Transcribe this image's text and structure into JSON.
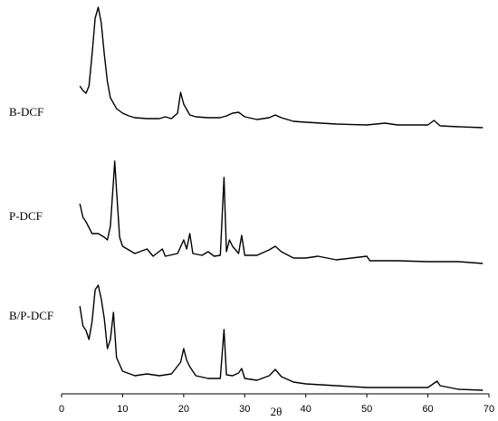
{
  "chart_data": {
    "type": "line",
    "x_label": "2θ",
    "xlim": [
      0,
      70
    ],
    "xticks": [
      0,
      10,
      20,
      30,
      40,
      50,
      60,
      70
    ],
    "series": [
      {
        "name": "B-DCF",
        "color": "#000000",
        "x": [
          3,
          3.5,
          4,
          4.5,
          5,
          5.5,
          6,
          6.5,
          7,
          7.5,
          8,
          9,
          10,
          11,
          12,
          14,
          16,
          17,
          18,
          19,
          19.5,
          20,
          21,
          22,
          24,
          26,
          27,
          28,
          29,
          30,
          32,
          34,
          35,
          36,
          38,
          40,
          45,
          50,
          53,
          55,
          60,
          61,
          62,
          65,
          69
        ],
        "values": [
          47,
          42,
          39,
          47,
          82,
          122,
          134,
          117,
          82,
          52,
          34,
          22,
          17,
          14,
          12,
          11,
          11,
          13,
          11,
          17,
          40,
          27,
          15,
          13,
          12,
          12,
          14,
          17,
          18,
          13,
          10,
          12,
          15,
          12,
          8,
          7,
          5,
          4,
          6,
          4,
          4,
          9,
          3,
          2,
          1
        ]
      },
      {
        "name": "P-DCF",
        "color": "#000000",
        "x": [
          3,
          3.5,
          4,
          5,
          6,
          7,
          7.5,
          8,
          8.5,
          8.7,
          9,
          9.5,
          10,
          12,
          14,
          15,
          16.5,
          17,
          19,
          20,
          20.5,
          21,
          21.5,
          23,
          24,
          25,
          26,
          26.6,
          27,
          27.5,
          28,
          29,
          29.5,
          30,
          32,
          34,
          35,
          36,
          38,
          40,
          42,
          45,
          50,
          50.5,
          55,
          60,
          65,
          69
        ],
        "values": [
          67,
          52,
          47,
          34,
          34,
          30,
          27,
          42,
          92,
          114,
          82,
          30,
          20,
          12,
          17,
          9,
          17,
          9,
          12,
          27,
          17,
          34,
          12,
          10,
          14,
          9,
          10,
          96,
          14,
          27,
          20,
          12,
          32,
          10,
          10,
          16,
          20,
          14,
          7,
          7,
          9,
          5,
          9,
          4,
          4,
          3,
          3,
          1
        ]
      },
      {
        "name": "B/P-DCF",
        "color": "#000000",
        "x": [
          3,
          3.5,
          4,
          4.5,
          5,
          5.5,
          6,
          6.5,
          7,
          7.5,
          8,
          8.5,
          9,
          10,
          12,
          14,
          16,
          18,
          19.5,
          20,
          20.5,
          21,
          22,
          24,
          26,
          26.6,
          27,
          28,
          29,
          29.5,
          30,
          32,
          34,
          35,
          36,
          38,
          40,
          45,
          50,
          55,
          60,
          61.5,
          62,
          65,
          69
        ],
        "values": [
          94,
          72,
          67,
          57,
          77,
          112,
          117,
          102,
          80,
          47,
          57,
          87,
          37,
          22,
          17,
          19,
          17,
          19,
          32,
          47,
          34,
          27,
          17,
          14,
          14,
          68,
          18,
          17,
          20,
          25,
          14,
          12,
          17,
          24,
          16,
          10,
          8,
          6,
          4,
          4,
          4,
          11,
          6,
          2,
          1
        ]
      }
    ]
  }
}
